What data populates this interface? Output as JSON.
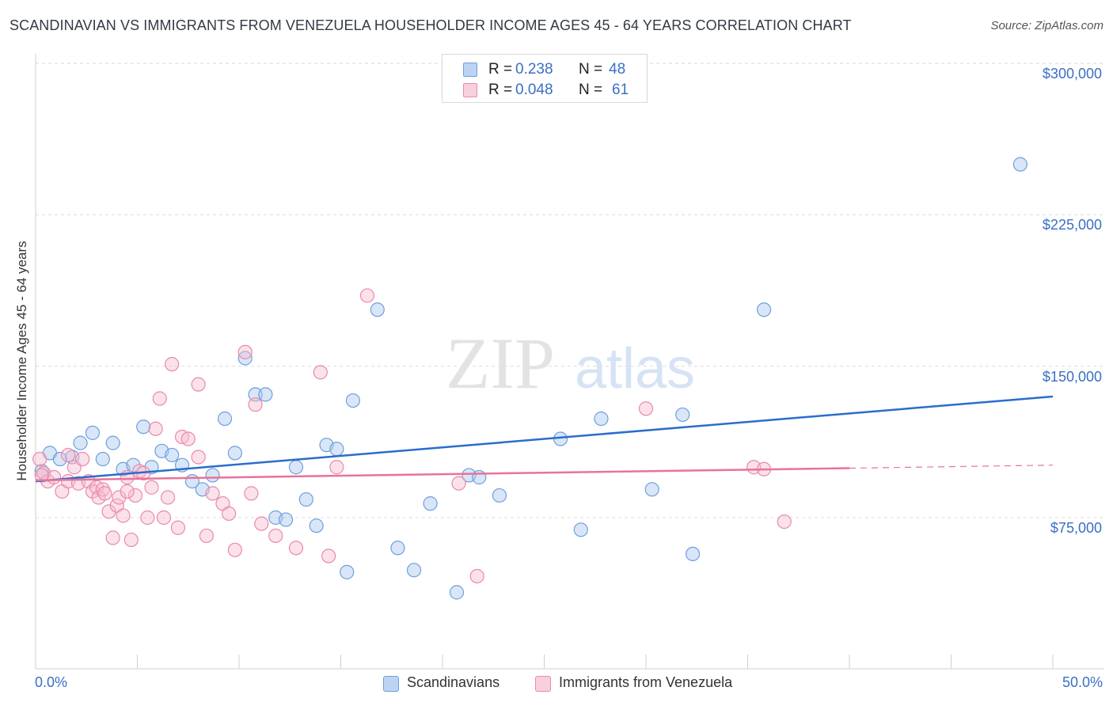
{
  "title": "SCANDINAVIAN VS IMMIGRANTS FROM VENEZUELA HOUSEHOLDER INCOME AGES 45 - 64 YEARS CORRELATION CHART",
  "source": "Source: ZipAtlas.com",
  "watermark": {
    "zip": "ZIP",
    "atlas": "atlas"
  },
  "legend_top": {
    "rows": [
      {
        "r_label": "R = ",
        "r_value": "0.238",
        "n_label": "N = ",
        "n_value": "48"
      },
      {
        "r_label": "R = ",
        "r_value": "0.048",
        "n_label": "N = ",
        "n_value": "61"
      }
    ]
  },
  "colors": {
    "blue_fill": "#a9c8f0",
    "blue_stroke": "#6f9fdc",
    "blue_line": "#2a6dcc",
    "pink_fill": "#f7bcd0",
    "pink_stroke": "#e98aa9",
    "pink_line": "#e8739a",
    "grid": "#dcdcdc",
    "axis_text": "#3a6fc4"
  },
  "chart_data": {
    "type": "scatter",
    "title": "SCANDINAVIAN VS IMMIGRANTS FROM VENEZUELA HOUSEHOLDER INCOME AGES 45 - 64 YEARS CORRELATION CHART",
    "xlabel": "",
    "ylabel": "Householder Income Ages 45 - 64 years",
    "xlim": [
      0,
      50
    ],
    "ylim": [
      10000,
      310000
    ],
    "x_tick_labels": [
      "0.0%",
      "50.0%"
    ],
    "y_ticks": [
      75000,
      150000,
      225000,
      300000
    ],
    "y_tick_labels": [
      "$75,000",
      "$150,000",
      "$225,000",
      "$300,000"
    ],
    "grid": true,
    "legend": "bottom-center",
    "series": [
      {
        "name": "Scandinavians",
        "color": "#6f9fdc",
        "r": 0.238,
        "n": 48,
        "trend": {
          "x": [
            0,
            50
          ],
          "y": [
            93000,
            135000
          ],
          "dashed_after": null
        },
        "points": [
          [
            0.3,
            98000
          ],
          [
            0.7,
            107000
          ],
          [
            1.2,
            104000
          ],
          [
            1.8,
            105000
          ],
          [
            2.2,
            112000
          ],
          [
            2.8,
            117000
          ],
          [
            3.3,
            104000
          ],
          [
            3.8,
            112000
          ],
          [
            4.3,
            99000
          ],
          [
            4.8,
            101000
          ],
          [
            5.3,
            120000
          ],
          [
            5.7,
            100000
          ],
          [
            6.2,
            108000
          ],
          [
            6.7,
            106000
          ],
          [
            7.2,
            101000
          ],
          [
            7.7,
            93000
          ],
          [
            8.2,
            89000
          ],
          [
            8.7,
            96000
          ],
          [
            9.3,
            124000
          ],
          [
            9.8,
            107000
          ],
          [
            10.3,
            154000
          ],
          [
            10.8,
            136000
          ],
          [
            11.3,
            136000
          ],
          [
            11.8,
            75000
          ],
          [
            12.3,
            74000
          ],
          [
            12.8,
            100000
          ],
          [
            13.3,
            84000
          ],
          [
            13.8,
            71000
          ],
          [
            14.3,
            111000
          ],
          [
            14.8,
            109000
          ],
          [
            15.3,
            48000
          ],
          [
            15.6,
            133000
          ],
          [
            16.8,
            178000
          ],
          [
            17.8,
            60000
          ],
          [
            18.6,
            49000
          ],
          [
            19.4,
            82000
          ],
          [
            20.7,
            38000
          ],
          [
            21.3,
            96000
          ],
          [
            21.8,
            95000
          ],
          [
            22.8,
            86000
          ],
          [
            25.8,
            114000
          ],
          [
            26.8,
            69000
          ],
          [
            27.8,
            124000
          ],
          [
            30.3,
            89000
          ],
          [
            31.8,
            126000
          ],
          [
            32.3,
            57000
          ],
          [
            35.8,
            178000
          ],
          [
            48.4,
            250000
          ]
        ]
      },
      {
        "name": "Immigrants from Venezuela",
        "color": "#e98aa9",
        "r": 0.048,
        "n": 61,
        "trend": {
          "x": [
            0,
            50
          ],
          "y": [
            93500,
            101000
          ],
          "dashed_after": 40
        },
        "points": [
          [
            0.2,
            104000
          ],
          [
            0.4,
            97000
          ],
          [
            0.6,
            93000
          ],
          [
            0.9,
            95000
          ],
          [
            1.3,
            88000
          ],
          [
            1.6,
            93000
          ],
          [
            1.9,
            100000
          ],
          [
            2.1,
            92000
          ],
          [
            2.3,
            104000
          ],
          [
            2.6,
            93000
          ],
          [
            2.8,
            88000
          ],
          [
            3.0,
            90000
          ],
          [
            3.1,
            85000
          ],
          [
            3.3,
            89000
          ],
          [
            3.4,
            87000
          ],
          [
            3.6,
            78000
          ],
          [
            3.8,
            65000
          ],
          [
            4.0,
            81000
          ],
          [
            4.1,
            85000
          ],
          [
            4.3,
            76000
          ],
          [
            4.5,
            95000
          ],
          [
            4.7,
            64000
          ],
          [
            4.9,
            86000
          ],
          [
            5.1,
            98000
          ],
          [
            5.3,
            97000
          ],
          [
            5.5,
            75000
          ],
          [
            5.7,
            90000
          ],
          [
            5.9,
            119000
          ],
          [
            6.1,
            134000
          ],
          [
            6.3,
            75000
          ],
          [
            6.5,
            85000
          ],
          [
            6.7,
            151000
          ],
          [
            7.0,
            70000
          ],
          [
            7.2,
            115000
          ],
          [
            7.5,
            114000
          ],
          [
            8.0,
            105000
          ],
          [
            8.0,
            141000
          ],
          [
            8.4,
            66000
          ],
          [
            8.7,
            87000
          ],
          [
            9.2,
            82000
          ],
          [
            9.5,
            77000
          ],
          [
            9.8,
            59000
          ],
          [
            10.3,
            157000
          ],
          [
            10.6,
            87000
          ],
          [
            10.8,
            131000
          ],
          [
            11.1,
            72000
          ],
          [
            11.8,
            66000
          ],
          [
            12.8,
            60000
          ],
          [
            14.0,
            147000
          ],
          [
            14.4,
            56000
          ],
          [
            14.8,
            100000
          ],
          [
            16.3,
            185000
          ],
          [
            20.8,
            92000
          ],
          [
            21.7,
            46000
          ],
          [
            30.0,
            129000
          ],
          [
            35.3,
            100000
          ],
          [
            35.8,
            99000
          ],
          [
            36.8,
            73000
          ],
          [
            0.3,
            96000
          ],
          [
            1.6,
            106000
          ],
          [
            4.5,
            88000
          ]
        ]
      }
    ]
  },
  "bottom_legend": [
    {
      "label": "Scandinavians"
    },
    {
      "label": "Immigrants from Venezuela"
    }
  ]
}
